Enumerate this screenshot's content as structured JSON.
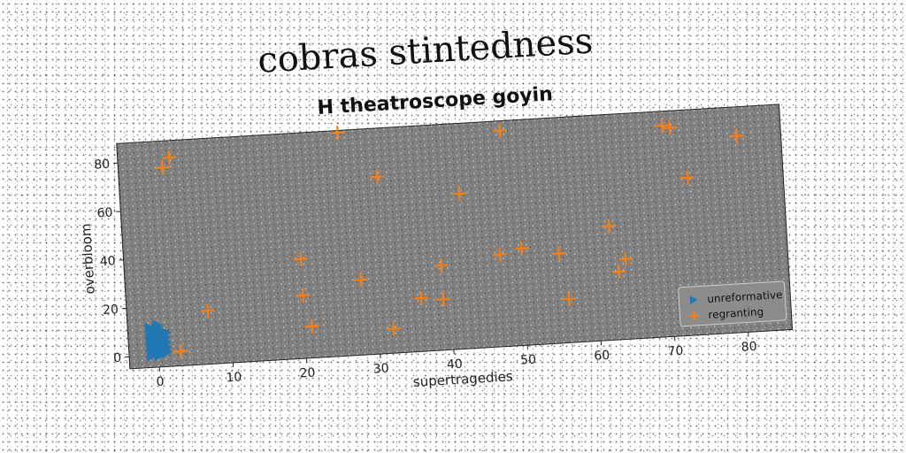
{
  "suptitle": "cobras stintedness",
  "chart_data": {
    "type": "scatter",
    "title": "H theatroscope goyin",
    "xlabel": "supertragedies",
    "ylabel": "overbloom",
    "xlim": [
      -4,
      86
    ],
    "ylim": [
      -5,
      88
    ],
    "xticks": [
      "0",
      "10",
      "20",
      "30",
      "40",
      "50",
      "60",
      "70",
      "80"
    ],
    "yticks": [
      "0",
      "20",
      "40",
      "60",
      "80"
    ],
    "grid": false,
    "legend_position": "lower-right",
    "plot_background": "#808080",
    "series": [
      {
        "name": "unreformative",
        "marker": "triangle-right",
        "color": "#1f77b4",
        "points": [
          [
            -1,
            0
          ],
          [
            -1,
            1
          ],
          [
            -1,
            2
          ],
          [
            -1,
            3
          ],
          [
            -1,
            4
          ],
          [
            -1,
            5
          ],
          [
            -1,
            6
          ],
          [
            -1,
            7
          ],
          [
            -1,
            8
          ],
          [
            -1,
            9
          ],
          [
            -1,
            10
          ],
          [
            -1,
            11
          ],
          [
            0,
            0
          ],
          [
            0,
            2
          ],
          [
            0,
            4
          ],
          [
            0,
            6
          ],
          [
            0,
            8
          ],
          [
            0,
            10
          ],
          [
            0,
            12
          ],
          [
            1,
            1
          ],
          [
            1,
            3
          ],
          [
            1,
            5
          ],
          [
            1,
            7
          ],
          [
            1,
            9
          ]
        ]
      },
      {
        "name": "regranting",
        "marker": "plus",
        "color": "#ff7f0e",
        "points": [
          [
            2,
            77
          ],
          [
            3,
            81
          ],
          [
            26,
            87
          ],
          [
            31,
            68
          ],
          [
            48,
            84
          ],
          [
            42,
            59
          ],
          [
            70,
            82
          ],
          [
            71,
            81
          ],
          [
            80,
            76
          ],
          [
            73,
            60
          ],
          [
            62,
            42
          ],
          [
            20,
            36
          ],
          [
            7,
            17
          ],
          [
            20,
            21
          ],
          [
            28,
            26
          ],
          [
            39,
            30
          ],
          [
            47,
            33
          ],
          [
            50,
            35
          ],
          [
            55,
            32
          ],
          [
            64,
            28
          ],
          [
            63,
            23
          ],
          [
            56,
            13
          ],
          [
            36,
            17
          ],
          [
            39,
            16
          ],
          [
            21,
            8
          ],
          [
            32,
            5
          ],
          [
            3,
            1
          ]
        ]
      }
    ]
  }
}
